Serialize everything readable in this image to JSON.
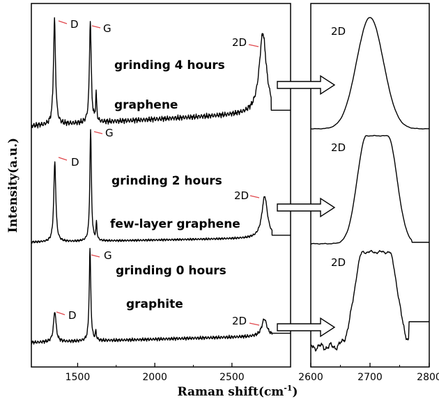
{
  "chart_data": [
    {
      "type": "line",
      "panel": "main",
      "xlabel": "Raman shift(cm",
      "xlabel_sup": "-1",
      "xlabel_close": ")",
      "ylabel": "Intensity(a.u.)",
      "xlim": [
        1200,
        2880
      ],
      "x_ticks": [
        1500,
        2000,
        2500
      ],
      "y_ticks_shown": false,
      "series": [
        {
          "grinding_label": "grinding 4 hours",
          "material_label": "graphene",
          "peaks": [
            {
              "label": "D",
              "x": 1350
            },
            {
              "label": "G",
              "x": 1580
            },
            {
              "label": "2D",
              "x": 2700
            }
          ]
        },
        {
          "grinding_label": "grinding 2 hours",
          "material_label": "few-layer graphene",
          "peaks": [
            {
              "label": "D",
              "x": 1350
            },
            {
              "label": "G",
              "x": 1580
            },
            {
              "label": "2D",
              "x": 2710
            }
          ]
        },
        {
          "grinding_label": "grinding 0 hours",
          "material_label": "graphite",
          "peaks": [
            {
              "label": "D",
              "x": 1350
            },
            {
              "label": "G",
              "x": 1580
            },
            {
              "label": "2D",
              "x": 2710
            }
          ]
        }
      ]
    },
    {
      "type": "line",
      "panel": "zoom",
      "xlim": [
        2600,
        2800
      ],
      "x_ticks": [
        2600,
        2700,
        2800
      ],
      "series_labels": [
        "2D",
        "2D",
        "2D"
      ]
    }
  ],
  "colors": {
    "axis": "#000000",
    "peak_tick": "#e0474c",
    "line": "#000000"
  }
}
